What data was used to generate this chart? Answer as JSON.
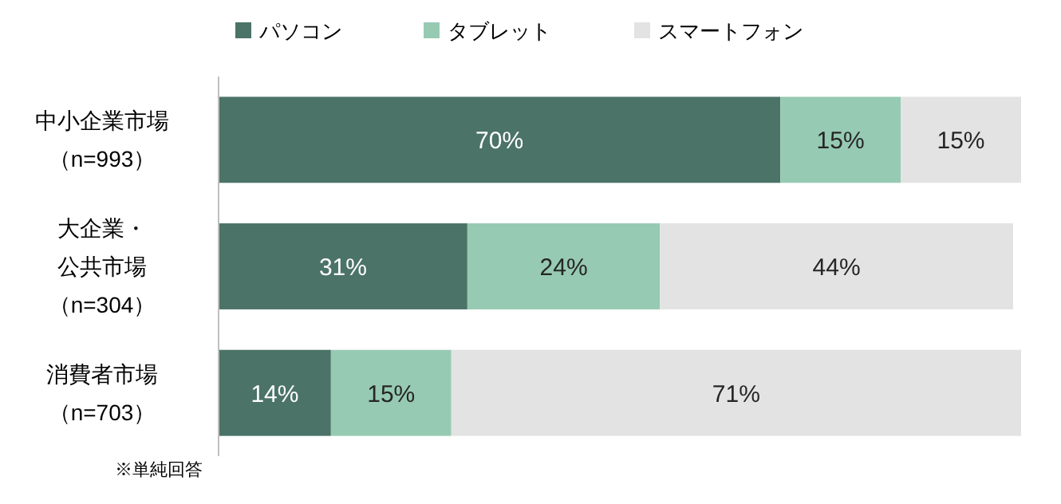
{
  "chart_data": {
    "type": "bar",
    "orientation": "horizontal",
    "stacked": true,
    "legend": "top",
    "categories": [
      "中小企業市場（n=993）",
      "大企業・公共市場（n=304）",
      "消費者市場（n=703）"
    ],
    "series": [
      {
        "name": "パソコン",
        "color": "#4b7367",
        "values": [
          70,
          31,
          14
        ],
        "value_labels": [
          "70%",
          "31%",
          "14%"
        ]
      },
      {
        "name": "タブレット",
        "color": "#97cab3",
        "values": [
          15,
          24,
          15
        ],
        "value_labels": [
          "15%",
          "24%",
          "15%"
        ]
      },
      {
        "name": "スマートフォン",
        "color": "#e3e3e3",
        "values": [
          15,
          44,
          71
        ],
        "value_labels": [
          "15%",
          "44%",
          "71%"
        ]
      }
    ],
    "annotations": [
      "※単純回答"
    ]
  }
}
